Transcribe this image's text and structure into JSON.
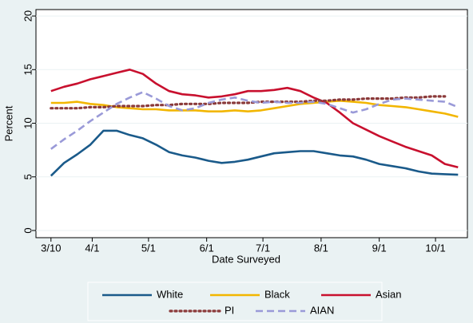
{
  "chart_data": {
    "type": "line",
    "x_label": "Date Surveyed",
    "y_label": "Percent",
    "x": [
      70,
      77,
      84,
      91,
      98,
      105,
      112,
      119,
      126,
      133,
      140,
      147,
      154,
      161,
      168,
      175,
      182,
      189,
      196,
      203,
      210,
      217,
      224,
      231,
      238,
      245,
      252,
      259,
      266,
      273,
      280,
      287
    ],
    "xlim": [
      62,
      292
    ],
    "xticks": [
      {
        "value": 70,
        "label": "3/10"
      },
      {
        "value": 92,
        "label": "4/1"
      },
      {
        "value": 122,
        "label": "5/1"
      },
      {
        "value": 153,
        "label": "6/1"
      },
      {
        "value": 183,
        "label": "7/1"
      },
      {
        "value": 214,
        "label": "8/1"
      },
      {
        "value": 245,
        "label": "9/1"
      },
      {
        "value": 275,
        "label": "10/1"
      }
    ],
    "ylim": [
      -0.67,
      20.6
    ],
    "yticks": [
      0,
      5,
      10,
      15,
      20
    ],
    "grid": true,
    "legend": "bottom",
    "series": [
      {
        "name": "White",
        "color": "#1a5a8a",
        "style": "solid",
        "values": [
          5.1,
          6.3,
          7.1,
          8.0,
          9.3,
          9.3,
          8.9,
          8.6,
          8.0,
          7.3,
          7.0,
          6.8,
          6.5,
          6.3,
          6.4,
          6.6,
          6.9,
          7.2,
          7.3,
          7.4,
          7.4,
          7.2,
          7.0,
          6.9,
          6.6,
          6.2,
          6.0,
          5.8,
          5.5,
          5.3,
          5.25,
          5.2
        ]
      },
      {
        "name": "Black",
        "color": "#f2b600",
        "style": "solid",
        "values": [
          11.9,
          11.9,
          12.0,
          11.8,
          11.7,
          11.5,
          11.4,
          11.3,
          11.3,
          11.2,
          11.2,
          11.2,
          11.1,
          11.1,
          11.2,
          11.1,
          11.2,
          11.4,
          11.6,
          11.8,
          11.9,
          12.0,
          12.1,
          12.0,
          11.9,
          11.7,
          11.6,
          11.5,
          11.3,
          11.1,
          10.9,
          10.6
        ]
      },
      {
        "name": "Asian",
        "color": "#c8102e",
        "style": "solid",
        "values": [
          13.0,
          13.4,
          13.7,
          14.1,
          14.4,
          14.7,
          15.0,
          14.6,
          13.7,
          13.0,
          12.7,
          12.6,
          12.4,
          12.5,
          12.7,
          13.0,
          13.0,
          13.1,
          13.3,
          13.0,
          12.4,
          11.9,
          11.0,
          10.0,
          9.4,
          8.8,
          8.3,
          7.8,
          7.4,
          7.0,
          6.2,
          5.9
        ]
      },
      {
        "name": "PI",
        "color": "#8b3a3a",
        "style": "dot",
        "values": [
          11.4,
          11.4,
          11.4,
          11.5,
          11.5,
          11.6,
          11.6,
          11.6,
          11.7,
          11.7,
          11.8,
          11.8,
          11.8,
          11.9,
          11.9,
          11.9,
          12.0,
          12.0,
          12.0,
          12.0,
          12.1,
          12.1,
          12.2,
          12.2,
          12.3,
          12.3,
          12.3,
          12.4,
          12.4,
          12.5,
          12.5,
          null
        ]
      },
      {
        "name": "AIAN",
        "color": "#9a9ad8",
        "style": "dash",
        "values": [
          7.6,
          8.5,
          9.3,
          10.2,
          11.0,
          11.8,
          12.4,
          12.9,
          12.3,
          11.6,
          11.2,
          11.4,
          11.9,
          12.2,
          12.4,
          12.1,
          11.9,
          12.0,
          11.9,
          11.9,
          12.0,
          11.8,
          11.4,
          11.0,
          11.3,
          11.8,
          12.2,
          12.3,
          12.2,
          12.1,
          12.0,
          11.5
        ]
      }
    ]
  }
}
